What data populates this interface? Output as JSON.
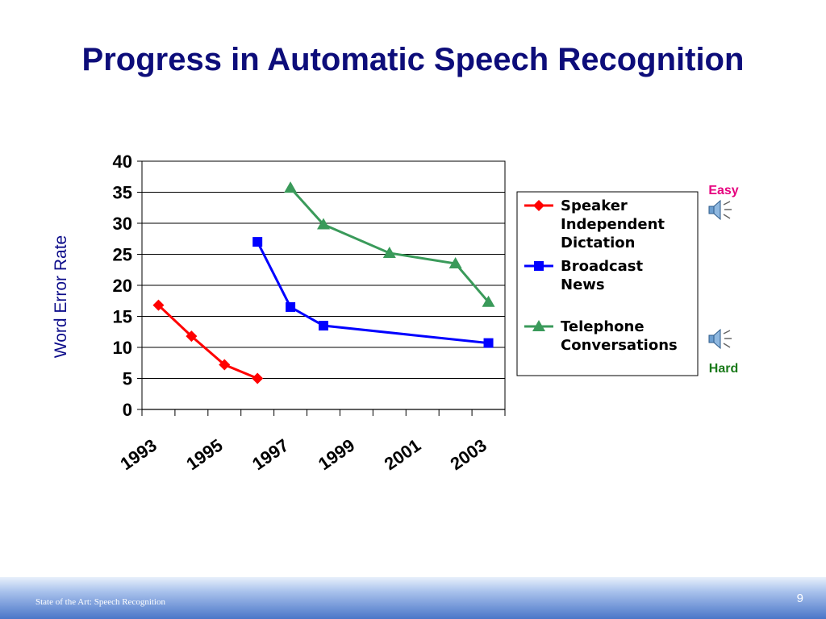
{
  "slide": {
    "title": "Progress in Automatic Speech Recognition",
    "footer_text": "State of the Art:  Speech Recognition",
    "page_number": "9"
  },
  "annotations": {
    "easy_label": "Easy",
    "hard_label": "Hard",
    "easy_color": "#e6007e",
    "hard_color": "#1a7a1a",
    "icon": "speaker-icon"
  },
  "chart_data": {
    "type": "line",
    "title": "",
    "xlabel": "",
    "ylabel": "Word Error Rate",
    "ylim": [
      0,
      40
    ],
    "xlim": [
      1993,
      2004
    ],
    "y_ticks": [
      "0",
      "5",
      "10",
      "15",
      "20",
      "25",
      "30",
      "35",
      "40"
    ],
    "x_tick_labels": [
      "1993",
      "1995",
      "1997",
      "1999",
      "2001",
      "2003"
    ],
    "grid": "horizontal",
    "legend_position": "right",
    "series": [
      {
        "name": "Speaker Independent Dictation",
        "color": "#ff0000",
        "marker": "diamond",
        "x": [
          1993.5,
          1994.5,
          1995.5,
          1996.5
        ],
        "y": [
          16.8,
          11.8,
          7.2,
          5.0
        ]
      },
      {
        "name": "Broadcast News",
        "color": "#0000ff",
        "marker": "square",
        "x": [
          1996.5,
          1997.5,
          1998.5,
          2003.5
        ],
        "y": [
          27.0,
          16.5,
          13.5,
          10.7
        ]
      },
      {
        "name": "Telephone Conversations",
        "color": "#3a9a5a",
        "marker": "triangle",
        "x": [
          1997.5,
          1998.5,
          2000.5,
          2002.5,
          2003.5
        ],
        "y": [
          35.7,
          29.8,
          25.2,
          23.5,
          17.3
        ]
      }
    ]
  }
}
